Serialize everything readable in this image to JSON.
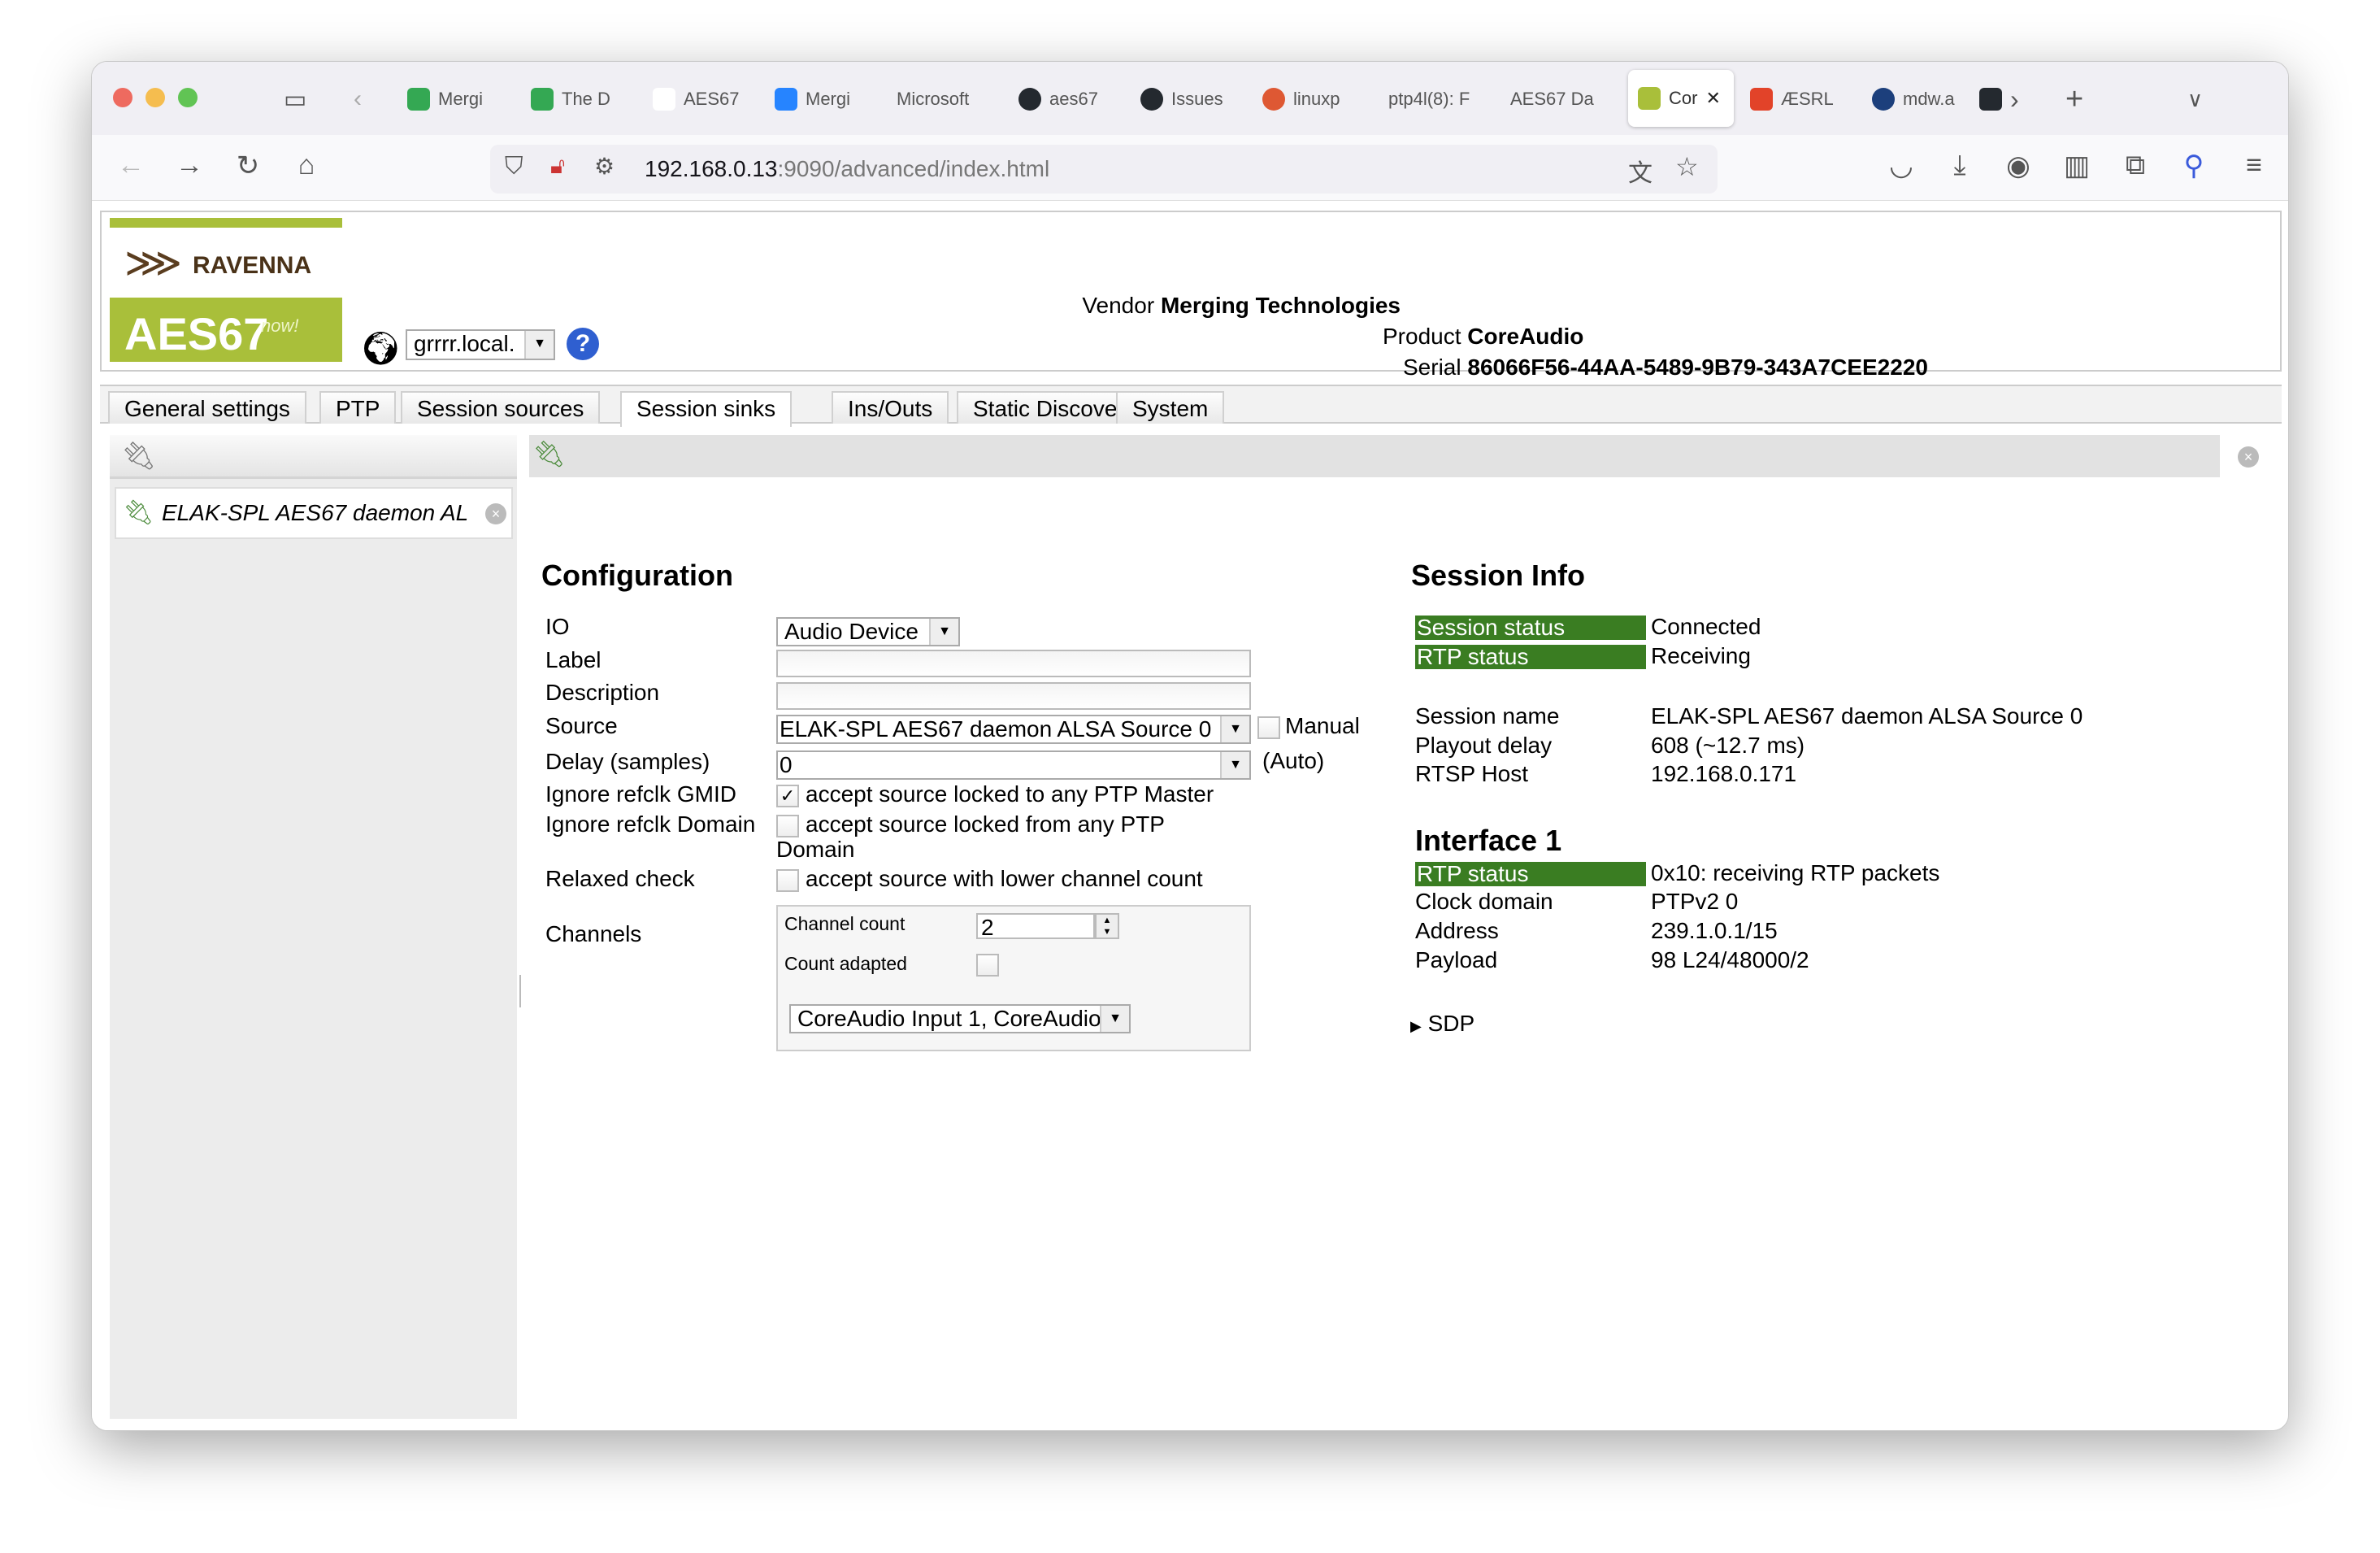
{
  "browser": {
    "tabs": [
      {
        "label": "Mergi",
        "icon": "google-drive-icon"
      },
      {
        "label": "The D",
        "icon": "google-drive-icon"
      },
      {
        "label": "AES67",
        "icon": "wikipedia-icon"
      },
      {
        "label": "Mergi",
        "icon": "bitbucket-icon"
      },
      {
        "label": "Microsoft",
        "icon": ""
      },
      {
        "label": "aes67",
        "icon": "github-icon"
      },
      {
        "label": "Issues",
        "icon": "github-icon"
      },
      {
        "label": "linuxp",
        "icon": "duckduckgo-icon"
      },
      {
        "label": "ptp4l(8): F",
        "icon": ""
      },
      {
        "label": "AES67 Da",
        "icon": ""
      },
      {
        "label": "Cor",
        "icon": "ravenna-icon",
        "active": true
      },
      {
        "label": "ÆSRL",
        "icon": "gitlab-icon"
      },
      {
        "label": "mdw.a",
        "icon": "mdw-icon"
      }
    ],
    "url_host": "192.168.0.13",
    "url_rest": ":9090/advanced/index.html"
  },
  "header": {
    "logo_top": "RAVENNA",
    "logo_bottom": "AES67",
    "logo_now": "now!",
    "host_select": "grrrr.local.",
    "vendor_label": "Vendor",
    "vendor": "Merging Technologies",
    "product_label": "Product",
    "product": "CoreAudio",
    "serial_label": "Serial",
    "serial": "86066F56-44AA-5489-9B79-343A7CEE2220"
  },
  "tabs": [
    "General settings",
    "PTP",
    "Session sources",
    "Session sinks",
    "Ins/Outs",
    "Static Discovery",
    "System"
  ],
  "active_tab": "Session sinks",
  "sinks": [
    {
      "name": "ELAK-SPL AES67 daemon AL"
    }
  ],
  "config": {
    "title": "Configuration",
    "io_label": "IO",
    "io_value": "Audio Device",
    "label_label": "Label",
    "label_value": "",
    "description_label": "Description",
    "description_value": "",
    "source_label": "Source",
    "source_value": "ELAK-SPL AES67 daemon ALSA Source 0",
    "manual_label": "Manual",
    "manual_checked": false,
    "delay_label": "Delay (samples)",
    "delay_value": "0",
    "delay_auto": "(Auto)",
    "gmid_label": "Ignore refclk GMID",
    "gmid_text": "accept source locked to any PTP Master",
    "gmid_checked": true,
    "domain_label": "Ignore refclk Domain",
    "domain_text": "accept source locked from any PTP",
    "domain_text2": "Domain",
    "domain_checked": false,
    "relaxed_label": "Relaxed check",
    "relaxed_text": "accept source with lower channel count",
    "relaxed_checked": false,
    "channels_label": "Channels",
    "channel_count_label": "Channel count",
    "channel_count": "2",
    "count_adapted_label": "Count adapted",
    "count_adapted_checked": false,
    "channel_map": "CoreAudio Input 1, CoreAudio"
  },
  "info": {
    "title": "Session Info",
    "session_status_label": "Session status",
    "session_status": "Connected",
    "rtp_status_label": "RTP status",
    "rtp_status": "Receiving",
    "session_name_label": "Session name",
    "session_name": "ELAK-SPL AES67 daemon ALSA Source 0",
    "playout_label": "Playout delay",
    "playout": "608 (~12.7 ms)",
    "rtsp_label": "RTSP Host",
    "rtsp": "192.168.0.171",
    "iface_title": "Interface 1",
    "if_rtp_label": "RTP status",
    "if_rtp": "0x10: receiving RTP packets",
    "clock_label": "Clock domain",
    "clock": "PTPv2 0",
    "address_label": "Address",
    "address": "239.1.0.1/15",
    "payload_label": "Payload",
    "payload": "98 L24/48000/2",
    "sdp_label": "SDP"
  },
  "colors": {
    "status_ok": "#3a7d22",
    "logo_green": "#a9bf3a"
  }
}
